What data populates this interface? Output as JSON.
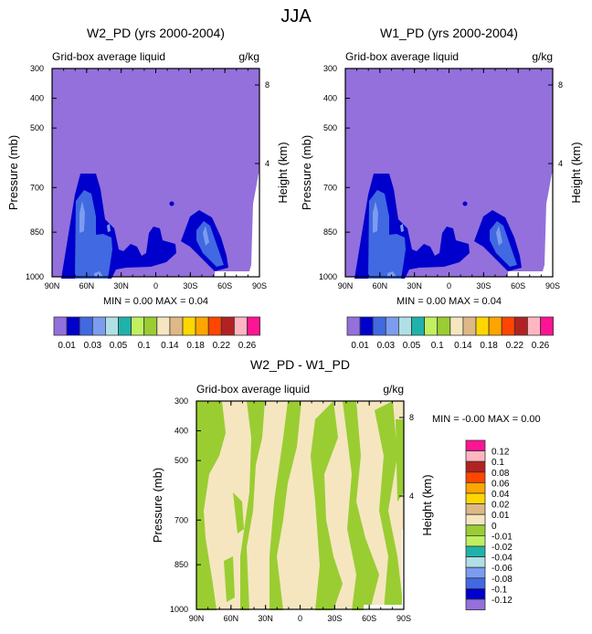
{
  "title": "JJA",
  "colors": {
    "outline": "#000000",
    "missing": "#ffffff"
  },
  "chart_data": [
    {
      "type": "contour",
      "title": "W2_PD (yrs 2000-2004)",
      "left_string": "Grid-box average liquid",
      "right_string": "g/kg",
      "ylabel": "Pressure (mb)",
      "ylabel_right": "Height (km)",
      "x_ticks": [
        "90N",
        "60N",
        "30N",
        "0",
        "30S",
        "60S",
        "90S"
      ],
      "y_ticks": [
        300,
        400,
        500,
        700,
        850,
        1000
      ],
      "ylim": [
        300,
        1000
      ],
      "y_right_ticks": [
        "8",
        "4"
      ],
      "minmax": "MIN =  0.00  MAX =  0.04",
      "colorbar": {
        "orientation": "horizontal",
        "colors": [
          "#9370DB",
          "#0000CD",
          "#4169E1",
          "#7B9CF0",
          "#B0E0E6",
          "#20B2AA",
          "#C0F060",
          "#9ACD32",
          "#F5E6C0",
          "#DEB887",
          "#FFD700",
          "#FFA500",
          "#FF4500",
          "#B22222",
          "#FFB6C1",
          "#FF1493"
        ],
        "labels": [
          "0.01",
          "0.03",
          "0.05",
          "0.1",
          "0.14",
          "0.18",
          "0.22",
          "0.26"
        ]
      }
    },
    {
      "type": "contour",
      "title": "W1_PD (yrs 2000-2004)",
      "left_string": "Grid-box average liquid",
      "right_string": "g/kg",
      "ylabel": "Pressure (mb)",
      "ylabel_right": "Height (km)",
      "x_ticks": [
        "90N",
        "60N",
        "30N",
        "0",
        "30S",
        "60S",
        "90S"
      ],
      "y_ticks": [
        300,
        400,
        500,
        700,
        850,
        1000
      ],
      "ylim": [
        300,
        1000
      ],
      "y_right_ticks": [
        "8",
        "4"
      ],
      "minmax": "MIN =  0.00  MAX =  0.04",
      "colorbar": {
        "orientation": "horizontal",
        "colors": [
          "#9370DB",
          "#0000CD",
          "#4169E1",
          "#7B9CF0",
          "#B0E0E6",
          "#20B2AA",
          "#C0F060",
          "#9ACD32",
          "#F5E6C0",
          "#DEB887",
          "#FFD700",
          "#FFA500",
          "#FF4500",
          "#B22222",
          "#FFB6C1",
          "#FF1493"
        ],
        "labels": [
          "0.01",
          "0.03",
          "0.05",
          "0.1",
          "0.14",
          "0.18",
          "0.22",
          "0.26"
        ]
      }
    },
    {
      "type": "contour",
      "title": "W2_PD - W1_PD",
      "left_string": "Grid-box average liquid",
      "right_string": "g/kg",
      "ylabel": "Pressure (mb)",
      "ylabel_right": "Height (km)",
      "x_ticks": [
        "90N",
        "60N",
        "30N",
        "0",
        "30S",
        "60S",
        "90S"
      ],
      "y_ticks": [
        300,
        400,
        500,
        700,
        850,
        1000
      ],
      "ylim": [
        300,
        1000
      ],
      "y_right_ticks": [
        "8",
        "4"
      ],
      "minmax": "MIN =  -0.00  MAX =   0.00",
      "colorbar": {
        "orientation": "vertical",
        "colors": [
          "#FF1493",
          "#FFB6C1",
          "#B22222",
          "#FF4500",
          "#FFA500",
          "#FFD700",
          "#DEB887",
          "#F5E6C0",
          "#9ACD32",
          "#C0F060",
          "#20B2AA",
          "#B0E0E6",
          "#7B9CF0",
          "#4169E1",
          "#0000CD",
          "#9370DB"
        ],
        "labels": [
          "0.12",
          "0.1",
          "0.08",
          "0.06",
          "0.04",
          "0.02",
          "0.01",
          "0",
          "-0.01",
          "-0.02",
          "-0.04",
          "-0.06",
          "-0.08",
          "-0.1",
          "-0.12"
        ]
      }
    }
  ]
}
